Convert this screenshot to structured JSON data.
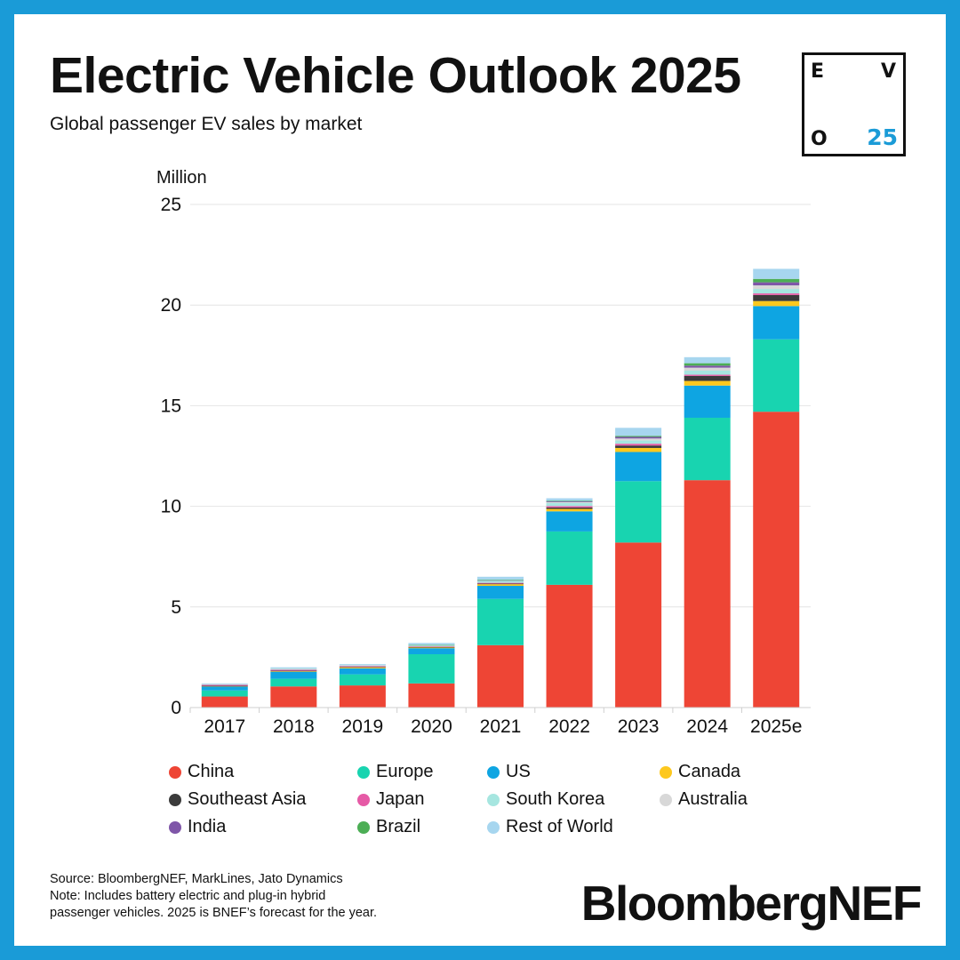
{
  "header": {
    "title": "Electric Vehicle Outlook 2025",
    "subtitle": "Global passenger EV sales by market"
  },
  "logo": {
    "e": "E",
    "v": "V",
    "o": "O",
    "num": "25",
    "num_color": "#1a9bd7"
  },
  "chart_data": {
    "type": "bar",
    "stacked": true,
    "title": "Electric Vehicle Outlook 2025",
    "subtitle": "Global passenger EV sales by market",
    "ylabel": "Million",
    "xlabel": "",
    "ylim": [
      0,
      25
    ],
    "yticks": [
      0,
      5,
      10,
      15,
      20,
      25
    ],
    "grid": true,
    "legend_position": "bottom",
    "categories": [
      "2017",
      "2018",
      "2019",
      "2020",
      "2021",
      "2022",
      "2023",
      "2024",
      "2025e"
    ],
    "series": [
      {
        "name": "China",
        "color": "#ee4535",
        "values": [
          0.55,
          1.05,
          1.1,
          1.2,
          3.1,
          6.1,
          8.2,
          11.3,
          14.7
        ]
      },
      {
        "name": "Europe",
        "color": "#18d4b0",
        "values": [
          0.3,
          0.38,
          0.55,
          1.45,
          2.3,
          2.65,
          3.05,
          3.1,
          3.6
        ]
      },
      {
        "name": "US",
        "color": "#0ea5e2",
        "values": [
          0.2,
          0.35,
          0.3,
          0.3,
          0.65,
          1.0,
          1.45,
          1.6,
          1.65
        ]
      },
      {
        "name": "Canada",
        "color": "#fdc81e",
        "values": [
          0.02,
          0.04,
          0.06,
          0.05,
          0.08,
          0.12,
          0.2,
          0.23,
          0.25
        ]
      },
      {
        "name": "Southeast Asia",
        "color": "#3b3b3b",
        "values": [
          0.01,
          0.01,
          0.01,
          0.01,
          0.03,
          0.07,
          0.12,
          0.25,
          0.3
        ]
      },
      {
        "name": "Japan",
        "color": "#e65aa6",
        "values": [
          0.05,
          0.05,
          0.04,
          0.03,
          0.04,
          0.07,
          0.09,
          0.06,
          0.08
        ]
      },
      {
        "name": "South Korea",
        "color": "#a6e6e0",
        "values": [
          0.02,
          0.05,
          0.04,
          0.05,
          0.1,
          0.16,
          0.16,
          0.2,
          0.22
        ]
      },
      {
        "name": "Australia",
        "color": "#d8d8d8",
        "values": [
          0.01,
          0.01,
          0.01,
          0.01,
          0.02,
          0.04,
          0.1,
          0.15,
          0.18
        ]
      },
      {
        "name": "India",
        "color": "#7f56a8",
        "values": [
          0.0,
          0.0,
          0.0,
          0.0,
          0.01,
          0.04,
          0.08,
          0.1,
          0.15
        ]
      },
      {
        "name": "Brazil",
        "color": "#4cae55",
        "values": [
          0.0,
          0.0,
          0.0,
          0.01,
          0.01,
          0.02,
          0.05,
          0.12,
          0.17
        ]
      },
      {
        "name": "Rest of World",
        "color": "#a7d6ef",
        "values": [
          0.04,
          0.06,
          0.05,
          0.1,
          0.16,
          0.13,
          0.4,
          0.3,
          0.5
        ]
      }
    ]
  },
  "notes": {
    "source": "Source: BloombergNEF, MarkLines, Jato Dynamics",
    "note_line1": "Note: Includes battery electric and plug-in hybrid",
    "note_line2": "passenger vehicles. 2025 is BNEF’s forecast for the year."
  },
  "brand": {
    "name": "BloombergNEF"
  }
}
